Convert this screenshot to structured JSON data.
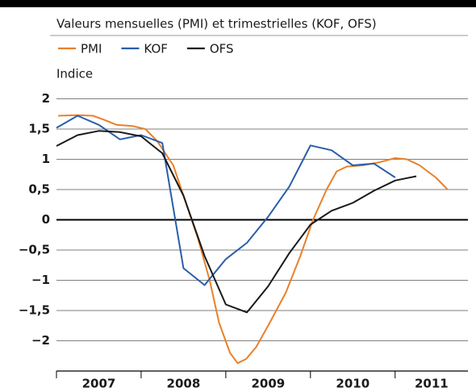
{
  "chart_data": {
    "type": "line",
    "subtitle": "Valeurs mensuelles (PMI) et trimestrielles (KOF, OFS)",
    "y_label": "Indice",
    "series": [
      {
        "name": "PMI",
        "color": "#e8812b",
        "x": [
          2007.02,
          2007.24,
          2007.43,
          2007.57,
          2007.71,
          2007.9,
          2008.05,
          2008.19,
          2008.38,
          2008.5,
          2008.67,
          2008.81,
          2008.92,
          2009.05,
          2009.14,
          2009.24,
          2009.36,
          2009.52,
          2009.71,
          2009.88,
          2010.03,
          2010.19,
          2010.31,
          2010.43,
          2010.62,
          2010.81,
          2011.0,
          2011.14,
          2011.29,
          2011.48,
          2011.62
        ],
        "values": [
          1.72,
          1.73,
          1.72,
          1.65,
          1.57,
          1.55,
          1.5,
          1.3,
          0.9,
          0.4,
          -0.3,
          -1.0,
          -1.7,
          -2.2,
          -2.37,
          -2.3,
          -2.1,
          -1.7,
          -1.2,
          -0.6,
          0.0,
          0.5,
          0.8,
          0.88,
          0.9,
          0.95,
          1.02,
          1.0,
          0.9,
          0.7,
          0.5
        ]
      },
      {
        "name": "KOF",
        "color": "#2a5ea8",
        "x": [
          2007.0,
          2007.25,
          2007.5,
          2007.75,
          2008.0,
          2008.25,
          2008.5,
          2008.75,
          2009.0,
          2009.25,
          2009.5,
          2009.75,
          2010.0,
          2010.25,
          2010.5,
          2010.75,
          2011.0
        ],
        "values": [
          1.52,
          1.72,
          1.57,
          1.33,
          1.4,
          1.27,
          -0.8,
          -1.08,
          -0.65,
          -0.38,
          0.05,
          0.55,
          1.23,
          1.15,
          0.9,
          0.93,
          0.7
        ]
      },
      {
        "name": "OFS",
        "color": "#1a1a1a",
        "x": [
          2007.0,
          2007.25,
          2007.5,
          2007.75,
          2008.0,
          2008.25,
          2008.5,
          2008.75,
          2009.0,
          2009.25,
          2009.5,
          2009.75,
          2010.0,
          2010.25,
          2010.5,
          2010.75,
          2011.0,
          2011.25
        ],
        "values": [
          1.22,
          1.4,
          1.47,
          1.45,
          1.38,
          1.1,
          0.4,
          -0.6,
          -1.4,
          -1.53,
          -1.1,
          -0.55,
          -0.08,
          0.15,
          0.28,
          0.48,
          0.65,
          0.72
        ]
      }
    ],
    "xlim": [
      2007,
      2011.86
    ],
    "xticks": [
      2007,
      2008,
      2009,
      2010,
      2011
    ],
    "ylim": [
      -2.5,
      2.5
    ],
    "yticks": [
      {
        "value": -2,
        "label": "−2"
      },
      {
        "value": -1.5,
        "label": "−1,5"
      },
      {
        "value": -1,
        "label": "−1"
      },
      {
        "value": -0.5,
        "label": "−0,5"
      },
      0,
      {
        "value": 0.5,
        "label": "0,5"
      },
      1,
      {
        "value": 1.5,
        "label": "1,5"
      },
      2
    ],
    "grid": true
  }
}
